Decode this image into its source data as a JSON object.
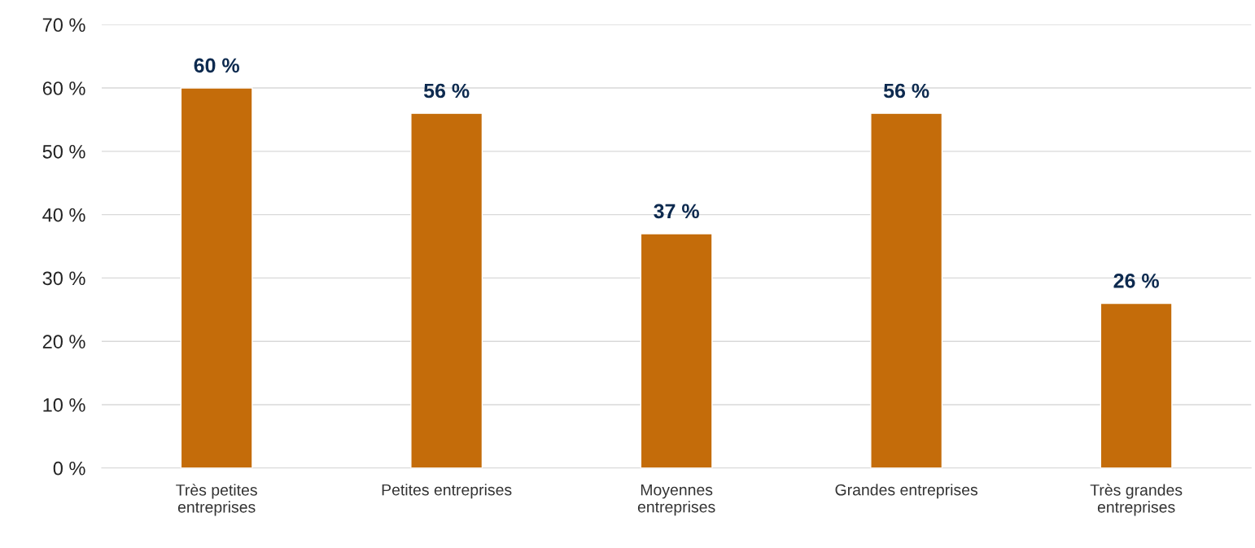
{
  "chart_data": {
    "type": "bar",
    "categories": [
      "Très petites\nentreprises",
      "Petites entreprises",
      "Moyennes\nentreprises",
      "Grandes entreprises",
      "Très grandes\nentreprises"
    ],
    "values": [
      60,
      56,
      37,
      56,
      26
    ],
    "value_labels": [
      "60 %",
      "56 %",
      "37 %",
      "56 %",
      "26 %"
    ],
    "color": "#c46c0a",
    "ylim": [
      0,
      70
    ],
    "yticks": [
      {
        "value": 0,
        "label": "0 %"
      },
      {
        "value": 10,
        "label": "10 %"
      },
      {
        "value": 20,
        "label": "20 %"
      },
      {
        "value": 30,
        "label": "30 %"
      },
      {
        "value": 40,
        "label": "40 %"
      },
      {
        "value": 50,
        "label": "50 %"
      },
      {
        "value": 60,
        "label": "60 %"
      },
      {
        "value": 70,
        "label": "70 %"
      }
    ],
    "grid": "y",
    "legend": false
  }
}
